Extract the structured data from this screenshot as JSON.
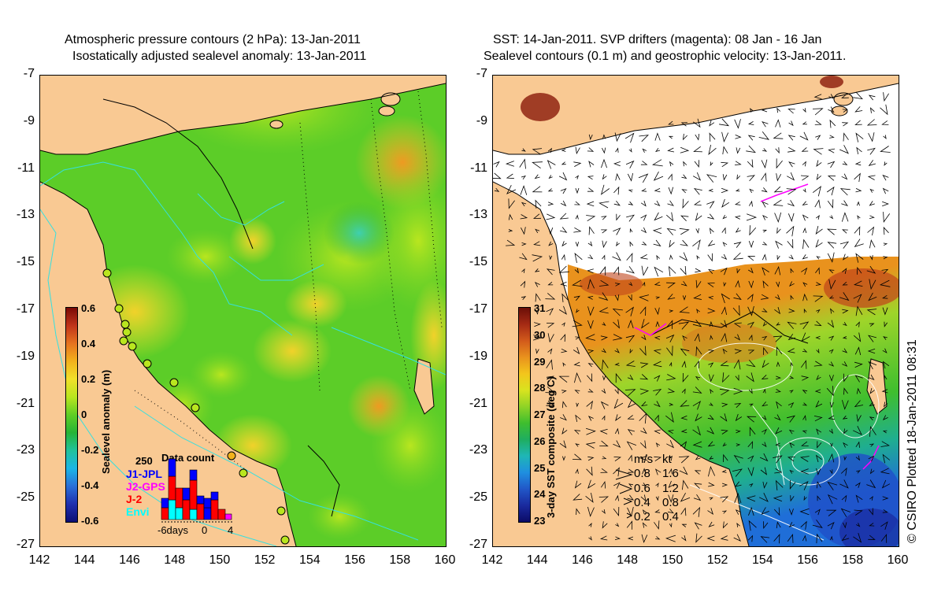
{
  "left_panel": {
    "title_line1": "Atmospheric pressure contours (2 hPa): 13-Jan-2011",
    "title_line2": "Isostatically adjusted sealevel anomaly: 13-Jan-2011",
    "colorbar": {
      "label": "Sealevel anomaly (m)",
      "ticks": [
        "0.6",
        "0.4",
        "0.2",
        "0",
        "-0.2",
        "-0.4",
        "-0.6"
      ],
      "colors": [
        "#7a0a05",
        "#c0341a",
        "#e6731f",
        "#f2b21c",
        "#f1e12a",
        "#b9e61f",
        "#5fce25",
        "#27b436",
        "#21c29c",
        "#1bb6e6",
        "#2a6fd8",
        "#1f2fae",
        "#0d0e74"
      ]
    },
    "data_count": {
      "title": "Data count",
      "max_label": "250",
      "missions": [
        {
          "name": "J1-JPL",
          "color": "#0000ff"
        },
        {
          "name": "J2-GPS",
          "color": "#ff00ff"
        },
        {
          "name": "J-2",
          "color": "#ff0000"
        },
        {
          "name": "Envi",
          "color": "#00ffff"
        }
      ],
      "x_labels": [
        "-6days",
        "0",
        "4"
      ]
    }
  },
  "right_panel": {
    "title_line1": "SST: 14-Jan-2011. SVP drifters (magenta): 08 Jan - 16 Jan",
    "title_line2": "Sealevel contours (0.1 m) and geostrophic velocity: 13-Jan-2011.",
    "colorbar": {
      "label": "3-day SST composite (deg C)",
      "ticks": [
        "31",
        "30",
        "29",
        "28",
        "27",
        "26",
        "25",
        "24",
        "23"
      ],
      "colors": [
        "#6b0f08",
        "#a52a14",
        "#d25a1b",
        "#e9921d",
        "#f3c61c",
        "#d9e31f",
        "#8fd326",
        "#3fbe2e",
        "#1fae60",
        "#1fb6b6",
        "#1f8fe0",
        "#2157c8",
        "#1a2a9e",
        "#0b0b66"
      ]
    },
    "velocity_legend": {
      "header_ms": "m/s",
      "header_kt": "kt",
      "rows": [
        {
          "ms": "0.8",
          "kt": "1.6"
        },
        {
          "ms": "0.6",
          "kt": "1.2"
        },
        {
          "ms": "0.4",
          "kt": "0.8"
        },
        {
          "ms": "0.2",
          "kt": "0.4"
        }
      ]
    }
  },
  "axes": {
    "lat_labels": [
      "-7",
      "-9",
      "-11",
      "-13",
      "-15",
      "-17",
      "-19",
      "-21",
      "-23",
      "-25",
      "-27"
    ],
    "lon_labels": [
      "142",
      "144",
      "146",
      "148",
      "150",
      "152",
      "154",
      "156",
      "158",
      "160"
    ]
  },
  "copyright": "© CSIRO Plotted 18-Jan-2011 08:31"
}
